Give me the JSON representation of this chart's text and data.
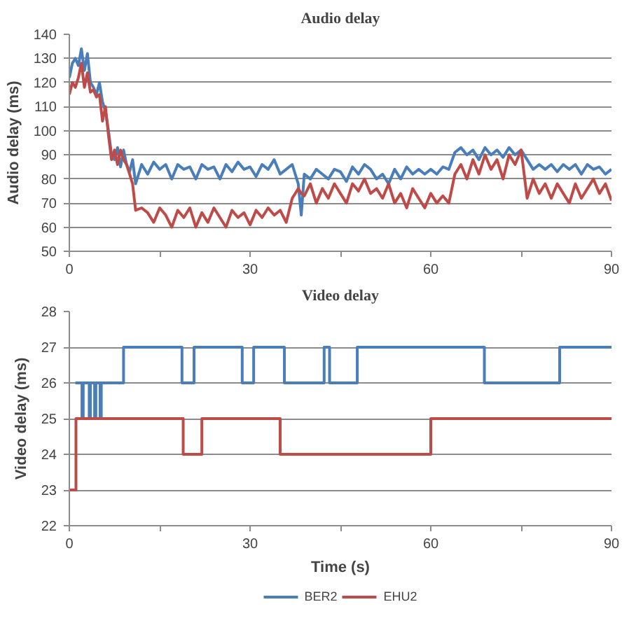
{
  "chart_data": [
    {
      "type": "line",
      "title": "Audio delay",
      "ylabel": "Audio delay (ms)",
      "xlim": [
        0,
        90
      ],
      "ylim": [
        50,
        140
      ],
      "xticks": [
        0,
        {
          "value": 15,
          "label": null
        },
        30,
        {
          "value": 45,
          "label": null
        },
        60,
        {
          "value": 75,
          "label": null
        },
        90
      ],
      "yticks": [
        50,
        60,
        70,
        80,
        90,
        100,
        110,
        120,
        130,
        140
      ],
      "grid": "y",
      "legend": false,
      "x": [
        0,
        0.5,
        1,
        1.5,
        2,
        2.5,
        3,
        3.5,
        4,
        4.5,
        5,
        5.5,
        6,
        6.5,
        7,
        7.5,
        8,
        8.5,
        9,
        9.5,
        10,
        10.5,
        11,
        12,
        13,
        14,
        15,
        16,
        17,
        18,
        19,
        20,
        21,
        22,
        23,
        24,
        25,
        26,
        27,
        28,
        29,
        30,
        31,
        32,
        33,
        34,
        35,
        36,
        37,
        38,
        38.5,
        39,
        40,
        41,
        42,
        43,
        44,
        45,
        46,
        47,
        48,
        49,
        50,
        51,
        52,
        53,
        54,
        55,
        56,
        57,
        58,
        59,
        60,
        61,
        62,
        63,
        64,
        65,
        66,
        67,
        68,
        69,
        70,
        71,
        72,
        73,
        74,
        75,
        76,
        77,
        78,
        79,
        80,
        81,
        82,
        83,
        84,
        85,
        86,
        87,
        88,
        89,
        90
      ],
      "series": [
        {
          "color": "#4a7ebb",
          "values": [
            122,
            128,
            130,
            127,
            134,
            125,
            132,
            120,
            118,
            115,
            120,
            112,
            108,
            100,
            90,
            88,
            93,
            85,
            92,
            86,
            83,
            88,
            78,
            86,
            82,
            87,
            84,
            86,
            80,
            86,
            84,
            85,
            80,
            86,
            84,
            85,
            80,
            86,
            83,
            87,
            84,
            85,
            81,
            86,
            84,
            88,
            82,
            84,
            86,
            78,
            65,
            82,
            80,
            84,
            82,
            80,
            84,
            83,
            79,
            85,
            82,
            86,
            84,
            80,
            82,
            78,
            84,
            80,
            85,
            82,
            84,
            82,
            84,
            82,
            85,
            84,
            91,
            93,
            90,
            92,
            88,
            93,
            90,
            92,
            89,
            93,
            90,
            92,
            88,
            84,
            86,
            84,
            86,
            83,
            86,
            84,
            86,
            82,
            86,
            84,
            85,
            82,
            84
          ]
        },
        {
          "color": "#be4b48",
          "values": [
            115,
            120,
            118,
            122,
            128,
            118,
            124,
            116,
            117,
            114,
            115,
            104,
            110,
            98,
            88,
            92,
            86,
            92,
            88,
            86,
            82,
            78,
            67,
            68,
            66,
            62,
            68,
            65,
            60,
            67,
            64,
            68,
            60,
            66,
            62,
            68,
            64,
            60,
            67,
            64,
            66,
            61,
            67,
            64,
            68,
            65,
            67,
            62,
            72,
            76,
            74,
            73,
            78,
            70,
            76,
            72,
            78,
            74,
            70,
            78,
            75,
            80,
            74,
            76,
            72,
            78,
            70,
            74,
            68,
            76,
            72,
            68,
            74,
            70,
            73,
            70,
            82,
            86,
            80,
            88,
            82,
            90,
            84,
            88,
            80,
            90,
            86,
            92,
            72,
            80,
            74,
            78,
            72,
            78,
            74,
            70,
            78,
            72,
            76,
            80,
            74,
            78,
            71
          ]
        }
      ]
    },
    {
      "type": "step",
      "title": "Video delay",
      "xlabel": "Time (s)",
      "ylabel": "Video delay (ms)",
      "xlim": [
        0,
        90
      ],
      "ylim": [
        22,
        28
      ],
      "xticks": [
        0,
        {
          "value": 15,
          "label": null
        },
        30,
        {
          "value": 45,
          "label": null
        },
        60,
        {
          "value": 75,
          "label": null
        },
        90
      ],
      "yticks": [
        22,
        23,
        24,
        25,
        26,
        27,
        28
      ],
      "grid": "y",
      "legend": "bottom",
      "series": [
        {
          "name": "BER2",
          "color": "#4a7ebb",
          "x": [
            1.0,
            2.1,
            2.3,
            3.3,
            3.5,
            4.2,
            4.4,
            5.1,
            5.3,
            9.0,
            18.7,
            20.7,
            28.7,
            30.6,
            35.7,
            42.3,
            43.2,
            47.8,
            68.9,
            81.4,
            90
          ],
          "values": [
            26,
            25,
            26,
            25,
            26,
            25,
            26,
            25,
            26,
            27,
            26,
            27,
            26,
            27,
            26,
            27,
            26,
            27,
            26,
            27,
            27
          ]
        },
        {
          "name": "EHU2",
          "color": "#be4b48",
          "x": [
            0,
            1.1,
            18.9,
            22.0,
            35.0,
            60.0,
            90
          ],
          "values": [
            23,
            25,
            24,
            25,
            24,
            25,
            25
          ]
        }
      ]
    }
  ]
}
